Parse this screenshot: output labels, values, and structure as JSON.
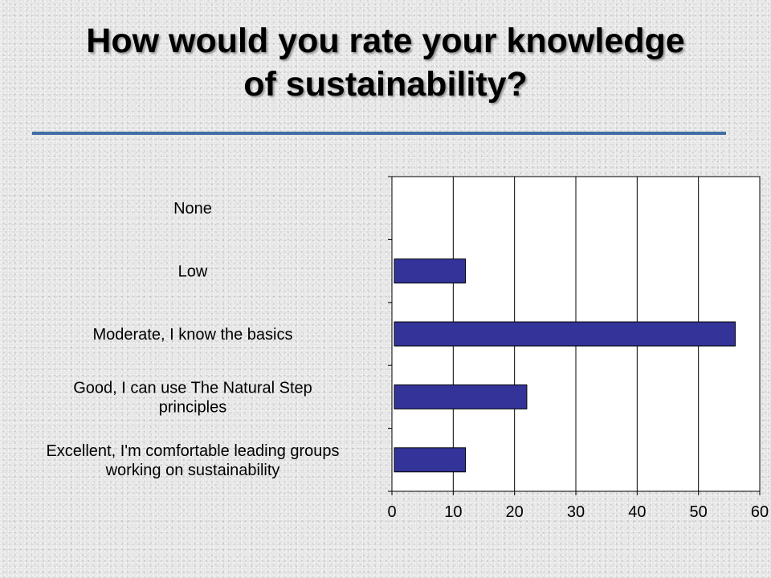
{
  "title_line1": "How would you rate your knowledge",
  "title_line2": "of sustainability?",
  "colors": {
    "bar": "#333399",
    "title_rule": "#3f6fa5"
  },
  "chart_data": {
    "type": "bar",
    "orientation": "horizontal",
    "categories": [
      [
        "None"
      ],
      [
        "Low"
      ],
      [
        "Moderate, I know the basics"
      ],
      [
        "Good, I can use The Natural Step",
        "principles"
      ],
      [
        "Excellent, I'm comfortable leading groups",
        "working on sustainability"
      ]
    ],
    "values": [
      0,
      12,
      56,
      22,
      12
    ],
    "xlim": [
      0,
      60
    ],
    "xticks": [
      0,
      10,
      20,
      30,
      40,
      50,
      60
    ],
    "grid": "vertical",
    "legend": "none"
  }
}
